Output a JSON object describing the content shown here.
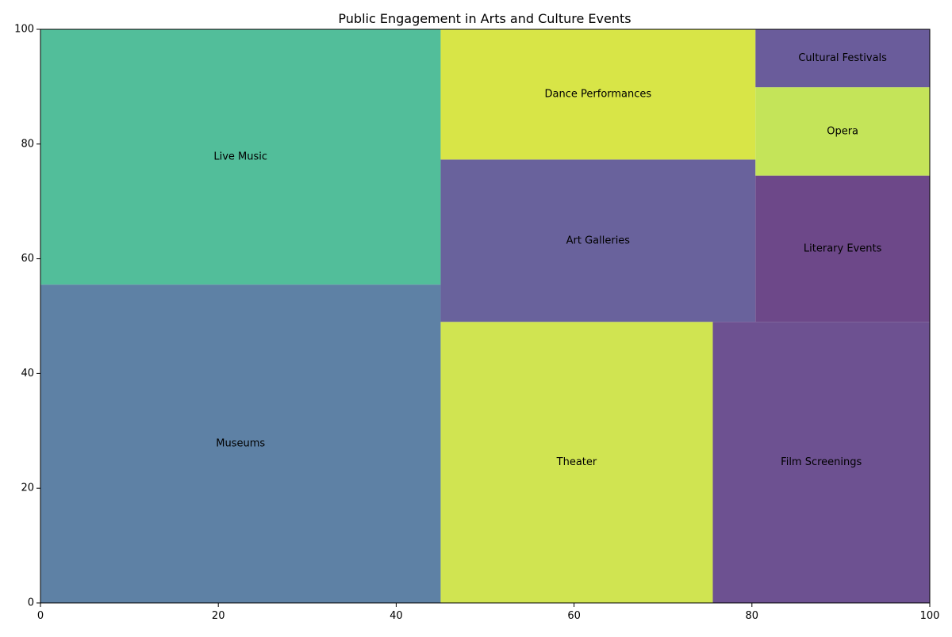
{
  "chart_data": {
    "type": "treemap",
    "title": "Public Engagement in Arts and Culture Events",
    "xlabel": "",
    "ylabel": "",
    "xlim": [
      0,
      100
    ],
    "ylim": [
      0,
      100
    ],
    "x_ticks": [
      "0",
      "20",
      "40",
      "60",
      "80",
      "100"
    ],
    "y_ticks": [
      "0",
      "20",
      "40",
      "60",
      "80",
      "100"
    ],
    "rectangles": [
      {
        "label": "Museums",
        "x": 0,
        "y": 0,
        "dx": 45,
        "dy": 55.5,
        "color": "#5E81A5"
      },
      {
        "label": "Live Music",
        "x": 0,
        "y": 55.5,
        "dx": 45,
        "dy": 44.5,
        "color": "#52BE9A"
      },
      {
        "label": "Theater",
        "x": 45,
        "y": 0,
        "dx": 30.6,
        "dy": 49,
        "color": "#D0E451"
      },
      {
        "label": "Art Galleries",
        "x": 45,
        "y": 49,
        "dx": 35.4,
        "dy": 28.3,
        "color": "#69629C"
      },
      {
        "label": "Dance Performances",
        "x": 45,
        "y": 77.3,
        "dx": 35.4,
        "dy": 22.7,
        "color": "#D8E547"
      },
      {
        "label": "Film Screenings",
        "x": 75.6,
        "y": 0,
        "dx": 24.4,
        "dy": 49,
        "color": "#6D5191"
      },
      {
        "label": "Literary Events",
        "x": 80.4,
        "y": 49,
        "dx": 19.6,
        "dy": 25.5,
        "color": "#6D4889"
      },
      {
        "label": "Opera",
        "x": 80.4,
        "y": 74.5,
        "dx": 19.6,
        "dy": 15.4,
        "color": "#C4E459"
      },
      {
        "label": "Cultural Festivals",
        "x": 80.4,
        "y": 89.9,
        "dx": 19.6,
        "dy": 10.1,
        "color": "#6A5C9B"
      }
    ]
  }
}
